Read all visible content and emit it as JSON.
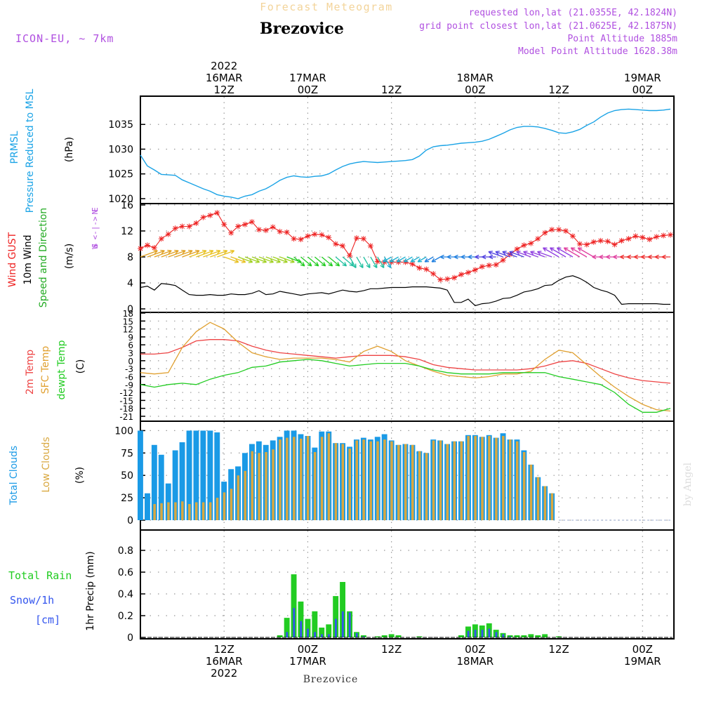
{
  "header": {
    "forecast_title": "Forecast Meteogram",
    "station": "Brezovice",
    "model": "ICON-EU, ~ 7km",
    "requested": "requested lon,lat (21.0355E, 42.1824N)",
    "grid_point": "grid point closest lon,lat (21.0625E, 42.1875N)",
    "point_alt": "Point Altitude 1885m",
    "model_alt": "Model Point Altitude 1628.38m",
    "footer_station": "Brezovice",
    "watermark": "by Angel"
  },
  "colors": {
    "pressure": "#1aa3e6",
    "gust": "#ee2222",
    "wind": "#000000",
    "temp2m": "#ee4444",
    "sfc": "#e0a030",
    "dewpt": "#22cc22",
    "total_cloud": "#1a9ae6",
    "low_cloud": "#d9a840",
    "rain": "#22cc22",
    "snow": "#3355ee",
    "label_purple": "#b050e0"
  },
  "time_axis": {
    "top_labels": [
      {
        "t": 12,
        "lines": [
          "2022",
          "16MAR",
          "12Z"
        ]
      },
      {
        "t": 24,
        "lines": [
          "17MAR",
          "00Z"
        ]
      },
      {
        "t": 36,
        "lines": [
          "12Z"
        ]
      },
      {
        "t": 48,
        "lines": [
          "18MAR",
          "00Z"
        ]
      },
      {
        "t": 60,
        "lines": [
          "12Z"
        ]
      },
      {
        "t": 72,
        "lines": [
          "19MAR",
          "00Z"
        ]
      }
    ],
    "bottom_labels": [
      {
        "t": 12,
        "lines": [
          "12Z",
          "16MAR",
          "2022"
        ]
      },
      {
        "t": 24,
        "lines": [
          "00Z",
          "17MAR"
        ]
      },
      {
        "t": 36,
        "lines": [
          "12Z"
        ]
      },
      {
        "t": 48,
        "lines": [
          "00Z",
          "18MAR"
        ]
      },
      {
        "t": 60,
        "lines": [
          "12Z"
        ]
      },
      {
        "t": 72,
        "lines": [
          "00Z",
          "19MAR"
        ]
      }
    ]
  },
  "panels": {
    "pressure": {
      "label_left": [
        "PRMSL",
        "Pressure Reduced to MSL"
      ],
      "unit": "(hPa)",
      "ylim": [
        1019,
        1040
      ],
      "ticks": [
        1020,
        1025,
        1030,
        1035
      ]
    },
    "wind": {
      "label_left": [
        "Wind GUST",
        "10m Wind",
        "Speed and Direction"
      ],
      "unit": "(m/s)",
      "compass": [
        "N",
        "W <-|-> E",
        "S"
      ],
      "ylim": [
        0,
        16
      ],
      "ticks": [
        0,
        4,
        8,
        12,
        16
      ]
    },
    "temp": {
      "label_left": [
        "2m Temp",
        "SFC Temp",
        "dewpt Temp"
      ],
      "unit": "(C)",
      "ylim": [
        -21,
        18
      ],
      "ticks": [
        18,
        15,
        12,
        9,
        6,
        3,
        0,
        -3,
        -6,
        -9,
        -12,
        -15,
        -18,
        -21
      ],
      "tick_labels": [
        "18",
        "15",
        "12",
        "9",
        "6",
        "3",
        "0",
        "-3",
        "-6",
        "-9",
        "-12",
        "-15",
        "-18",
        "-21"
      ]
    },
    "clouds": {
      "label_left": [
        "Total Clouds",
        "Low Clouds"
      ],
      "unit": "(%)",
      "ylim": [
        0,
        105
      ],
      "ticks": [
        0,
        25,
        50,
        75,
        100
      ]
    },
    "precip": {
      "label_left": [
        "Total Rain",
        "Snow/1h",
        "[cm]"
      ],
      "unit": "1hr Precip (mm)",
      "ylim": [
        0,
        1.0
      ],
      "ticks": [
        0,
        0.2,
        0.4,
        0.6,
        0.8
      ]
    }
  },
  "chart_data": [
    {
      "type": "line",
      "title": "PRMSL Pressure Reduced to MSL",
      "ylabel": "hPa",
      "x_unit": "hours after 2022-03-16 00Z",
      "x": [
        0,
        1,
        2,
        3,
        4,
        5,
        6,
        7,
        8,
        9,
        10,
        11,
        12,
        13,
        14,
        15,
        16,
        17,
        18,
        19,
        20,
        21,
        22,
        23,
        24,
        25,
        26,
        27,
        28,
        29,
        30,
        31,
        32,
        33,
        34,
        35,
        36,
        37,
        38,
        39,
        40,
        41,
        42,
        43,
        44,
        45,
        46,
        47,
        48,
        49,
        50,
        51,
        52,
        53,
        54,
        55,
        56,
        57,
        58,
        59,
        60,
        61,
        62,
        63,
        64,
        65,
        66,
        67,
        68,
        69,
        70,
        71,
        72,
        73,
        74,
        75,
        76
      ],
      "values": [
        1028.8,
        1026.6,
        1025.8,
        1024.9,
        1024.8,
        1024.7,
        1023.8,
        1023.2,
        1022.6,
        1022.0,
        1021.5,
        1020.8,
        1020.5,
        1020.3,
        1020.0,
        1020.5,
        1020.8,
        1021.5,
        1022.0,
        1022.8,
        1023.7,
        1024.3,
        1024.6,
        1024.4,
        1024.3,
        1024.5,
        1024.6,
        1025.0,
        1025.8,
        1026.5,
        1027.0,
        1027.3,
        1027.5,
        1027.4,
        1027.3,
        1027.4,
        1027.5,
        1027.6,
        1027.7,
        1027.9,
        1028.6,
        1029.8,
        1030.5,
        1030.7,
        1030.8,
        1031.0,
        1031.2,
        1031.3,
        1031.4,
        1031.6,
        1032.0,
        1032.6,
        1033.2,
        1033.9,
        1034.4,
        1034.6,
        1034.6,
        1034.5,
        1034.2,
        1033.8,
        1033.3,
        1033.2,
        1033.5,
        1034.0,
        1034.8,
        1035.5,
        1036.5,
        1037.3,
        1037.8,
        1038.0,
        1038.1,
        1038.0,
        1037.9,
        1037.8,
        1037.8,
        1037.9,
        1038.1
      ]
    },
    {
      "type": "line",
      "title": "Wind GUST / 10m Wind Speed",
      "ylabel": "m/s",
      "x_unit": "hours after 2022-03-16 00Z",
      "x": [
        0,
        1,
        2,
        3,
        4,
        5,
        6,
        7,
        8,
        9,
        10,
        11,
        12,
        13,
        14,
        15,
        16,
        17,
        18,
        19,
        20,
        21,
        22,
        23,
        24,
        25,
        26,
        27,
        28,
        29,
        30,
        31,
        32,
        33,
        34,
        35,
        36,
        37,
        38,
        39,
        40,
        41,
        42,
        43,
        44,
        45,
        46,
        47,
        48,
        49,
        50,
        51,
        52,
        53,
        54,
        55,
        56,
        57,
        58,
        59,
        60,
        61,
        62,
        63,
        64,
        65,
        66,
        67,
        68,
        69,
        70,
        71,
        72,
        73,
        74,
        75,
        76
      ],
      "series": [
        {
          "name": "Wind GUST",
          "values": [
            9.3,
            9.8,
            9.4,
            10.8,
            11.5,
            12.4,
            12.7,
            12.7,
            13.2,
            14.1,
            14.4,
            14.8,
            13.0,
            11.7,
            12.7,
            13.0,
            13.4,
            12.2,
            12.1,
            12.6,
            11.9,
            11.8,
            10.8,
            10.7,
            11.2,
            11.5,
            11.4,
            11.0,
            10.0,
            9.7,
            8.2,
            10.9,
            10.8,
            9.7,
            7.3,
            7.2,
            7.2,
            7.2,
            7.2,
            6.9,
            6.3,
            6.1,
            5.4,
            4.5,
            4.6,
            4.8,
            5.3,
            5.6,
            6.0,
            6.5,
            6.7,
            6.8,
            7.5,
            8.4,
            9.2,
            9.8,
            10.1,
            10.8,
            11.7,
            12.2,
            12.2,
            12.0,
            11.2,
            10.0,
            9.9,
            10.3,
            10.5,
            10.4,
            9.9,
            10.5,
            10.8,
            11.2,
            11.0,
            10.7,
            11.1,
            11.3,
            11.4
          ]
        },
        {
          "name": "10m Wind",
          "values": [
            3.3,
            3.5,
            2.9,
            3.9,
            3.8,
            3.6,
            2.9,
            2.2,
            2.1,
            2.1,
            2.2,
            2.1,
            2.1,
            2.3,
            2.2,
            2.2,
            2.4,
            2.8,
            2.2,
            2.3,
            2.7,
            2.5,
            2.3,
            2.1,
            2.3,
            2.4,
            2.5,
            2.3,
            2.6,
            2.9,
            2.7,
            2.6,
            2.8,
            3.1,
            3.1,
            3.2,
            3.3,
            3.3,
            3.3,
            3.4,
            3.4,
            3.4,
            3.3,
            3.2,
            2.9,
            1.0,
            1.0,
            1.5,
            0.5,
            0.8,
            0.9,
            1.2,
            1.6,
            1.7,
            2.1,
            2.6,
            2.8,
            3.1,
            3.6,
            3.7,
            4.4,
            4.9,
            5.1,
            4.7,
            4.1,
            3.3,
            2.9,
            2.6,
            2.1,
            0.7,
            0.8,
            0.8,
            0.8,
            0.8,
            0.8,
            0.7,
            0.7
          ]
        }
      ],
      "direction_arrows": "10m wind direction arrows plotted along 8 m/s line, colored by speed"
    },
    {
      "type": "line",
      "title": "2m Temp / SFC Temp / dewpt Temp",
      "ylabel": "C",
      "x_unit": "hours after 2022-03-16 00Z",
      "x": [
        0,
        2,
        4,
        6,
        8,
        10,
        12,
        14,
        16,
        18,
        20,
        22,
        24,
        26,
        28,
        30,
        32,
        34,
        36,
        38,
        40,
        42,
        44,
        46,
        48,
        50,
        52,
        54,
        56,
        58,
        60,
        62,
        64,
        66,
        68,
        70,
        72,
        74,
        76
      ],
      "series": [
        {
          "name": "2m Temp",
          "values": [
            2.5,
            2.5,
            3.0,
            5.0,
            7.5,
            8.0,
            8.0,
            7.5,
            5.5,
            4.0,
            3.0,
            2.5,
            2.0,
            1.5,
            1.0,
            1.5,
            2.0,
            2.0,
            2.0,
            1.5,
            0.5,
            -1.5,
            -2.5,
            -3.0,
            -3.5,
            -3.5,
            -3.5,
            -3.5,
            -3.0,
            -2.0,
            -0.5,
            0.0,
            -1.0,
            -3.0,
            -5.0,
            -6.5,
            -7.5,
            -8.0,
            -8.5
          ]
        },
        {
          "name": "SFC Temp",
          "values": [
            -4.5,
            -5.0,
            -4.5,
            5.0,
            11.0,
            14.5,
            12.0,
            7.0,
            3.0,
            1.5,
            0.5,
            1.0,
            1.0,
            1.0,
            0.5,
            -0.5,
            3.5,
            5.5,
            3.5,
            0.0,
            -2.0,
            -4.0,
            -5.5,
            -6.0,
            -6.5,
            -6.0,
            -5.0,
            -5.0,
            -4.0,
            0.5,
            4.0,
            3.0,
            -1.5,
            -6.0,
            -10.0,
            -13.5,
            -16.5,
            -18.5,
            -19.0
          ]
        },
        {
          "name": "dewpt Temp",
          "values": [
            -9.0,
            -10.0,
            -9.0,
            -8.5,
            -9.0,
            -7.0,
            -5.5,
            -4.5,
            -2.5,
            -2.0,
            -0.5,
            0.0,
            0.5,
            0.0,
            -1.0,
            -2.0,
            -1.5,
            -1.0,
            -1.0,
            -1.0,
            -2.0,
            -3.5,
            -4.5,
            -5.0,
            -5.0,
            -5.0,
            -4.5,
            -4.5,
            -4.5,
            -4.5,
            -6.0,
            -7.0,
            -8.0,
            -9.0,
            -12.0,
            -16.5,
            -19.5,
            -19.5,
            -18.0
          ]
        }
      ]
    },
    {
      "type": "bar",
      "title": "Total Clouds / Low Clouds",
      "ylabel": "%",
      "x_unit": "hours after 2022-03-16 00Z",
      "x": [
        0,
        1,
        2,
        3,
        4,
        5,
        6,
        7,
        8,
        9,
        10,
        11,
        12,
        13,
        14,
        15,
        16,
        17,
        18,
        19,
        20,
        21,
        22,
        23,
        24,
        25,
        26,
        27,
        28,
        29,
        30,
        31,
        32,
        33,
        34,
        35,
        36,
        37,
        38,
        39,
        40,
        41,
        42,
        43,
        44,
        45,
        46,
        47,
        48,
        49,
        50,
        51,
        52,
        53,
        54,
        55,
        56,
        57,
        58,
        59,
        60,
        61,
        62,
        63,
        64,
        65,
        66,
        67,
        68,
        69,
        70,
        71,
        72,
        73,
        74,
        75,
        76
      ],
      "series": [
        {
          "name": "Total Clouds",
          "values": [
            100,
            30,
            84,
            73,
            41,
            78,
            87,
            100,
            100,
            100,
            100,
            98,
            43,
            57,
            60,
            75,
            85,
            88,
            84,
            89,
            93,
            100,
            100,
            96,
            94,
            81,
            99,
            99,
            86,
            86,
            82,
            90,
            92,
            90,
            93,
            96,
            89,
            84,
            85,
            84,
            77,
            75,
            90,
            89,
            85,
            88,
            88,
            95,
            95,
            93,
            95,
            92,
            97,
            90,
            90,
            78,
            62,
            48,
            38,
            30,
            0,
            0,
            0,
            0,
            0,
            0,
            0,
            0,
            0,
            0,
            0,
            0,
            0,
            0,
            0,
            0,
            0
          ]
        },
        {
          "name": "Low Clouds",
          "values": [
            0,
            0,
            18,
            19,
            20,
            20,
            21,
            18,
            20,
            20,
            20,
            25,
            31,
            35,
            50,
            55,
            77,
            75,
            76,
            79,
            90,
            92,
            93,
            91,
            94,
            76,
            93,
            97,
            86,
            85,
            80,
            89,
            90,
            88,
            88,
            90,
            88,
            84,
            85,
            84,
            77,
            75,
            89,
            89,
            85,
            88,
            88,
            94,
            94,
            93,
            94,
            92,
            94,
            90,
            88,
            76,
            62,
            48,
            38,
            30,
            0,
            0,
            0,
            0,
            0,
            0,
            0,
            0,
            0,
            0,
            0,
            0,
            0,
            0,
            0,
            0,
            0
          ]
        }
      ]
    },
    {
      "type": "bar",
      "title": "1hr Precip",
      "ylabel": "1hr Precip (mm)",
      "x_unit": "hours after 2022-03-16 00Z",
      "x": [
        20,
        21,
        22,
        23,
        24,
        25,
        26,
        27,
        28,
        29,
        30,
        31,
        32,
        33,
        34,
        35,
        36,
        37,
        38,
        40,
        46,
        47,
        48,
        49,
        50,
        51,
        52,
        53,
        54,
        55,
        56,
        57,
        58,
        59,
        60
      ],
      "series": [
        {
          "name": "Total Rain",
          "values": [
            0.02,
            0.18,
            0.58,
            0.33,
            0.17,
            0.24,
            0.09,
            0.12,
            0.38,
            0.51,
            0.24,
            0.05,
            0.02,
            0.0,
            0.01,
            0.02,
            0.03,
            0.02,
            0.0,
            0.01,
            0.02,
            0.1,
            0.12,
            0.11,
            0.13,
            0.07,
            0.04,
            0.02,
            0.02,
            0.02,
            0.03,
            0.02,
            0.03,
            0.0,
            0.01
          ]
        },
        {
          "name": "Snow/1h",
          "values": [
            0.0,
            0.05,
            0.27,
            0.15,
            0.08,
            0.05,
            0.03,
            0.03,
            0.17,
            0.24,
            0.23,
            0.04,
            0.01,
            0.0,
            0.0,
            0.0,
            0.0,
            0.0,
            0.0,
            0.0,
            0.0,
            0.06,
            0.07,
            0.07,
            0.08,
            0.05,
            0.03,
            0.01,
            0.0,
            0.0,
            0.0,
            0.0,
            0.0,
            0.0,
            0.0
          ]
        }
      ]
    }
  ]
}
